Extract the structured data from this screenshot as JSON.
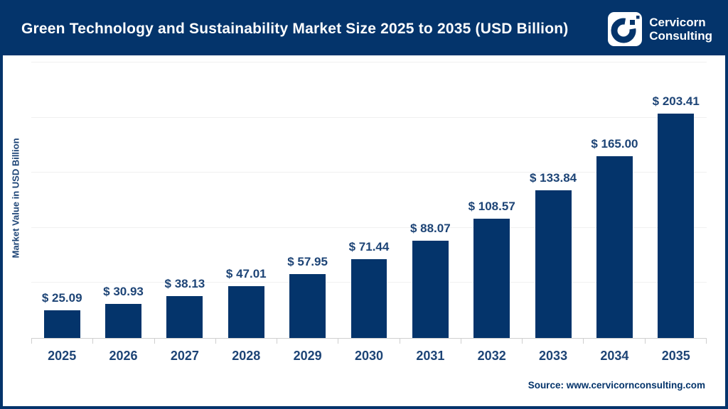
{
  "header": {
    "title": "Green Technology and Sustainability Market Size 2025 to 2035 (USD Billion)",
    "logo": {
      "brand_line1": "Cervicorn",
      "brand_line2": "Consulting"
    }
  },
  "chart_data": {
    "type": "bar",
    "title": "Green Technology and Sustainability Market Size 2025 to 2035 (USD Billion)",
    "categories": [
      "2025",
      "2026",
      "2027",
      "2028",
      "2029",
      "2030",
      "2031",
      "2032",
      "2033",
      "2034",
      "2035"
    ],
    "values": [
      25.09,
      30.93,
      38.13,
      47.01,
      57.95,
      71.44,
      88.07,
      108.57,
      133.84,
      165.0,
      203.41
    ],
    "value_labels": [
      "$ 25.09",
      "$ 30.93",
      "$ 38.13",
      "$ 47.01",
      "$ 57.95",
      "$ 71.44",
      "$ 88.07",
      "$ 108.57",
      "$ 133.84",
      "$ 165.00",
      "$ 203.41"
    ],
    "xlabel": "",
    "ylabel": "Market Value in USD Billion",
    "ylim": [
      0,
      250
    ],
    "gridline_step": 50,
    "grid": "horizontal-only",
    "legend": "none",
    "bar_color": "#04346b",
    "label_color": "#1d4476"
  },
  "footer": {
    "source": "Source: www.cervicornconsulting.com"
  },
  "colors": {
    "navy": "#04346b",
    "text_label": "#1d4476",
    "gridline": "#f0f0f0",
    "axis_line": "#cfcfcf",
    "background": "#ffffff"
  }
}
